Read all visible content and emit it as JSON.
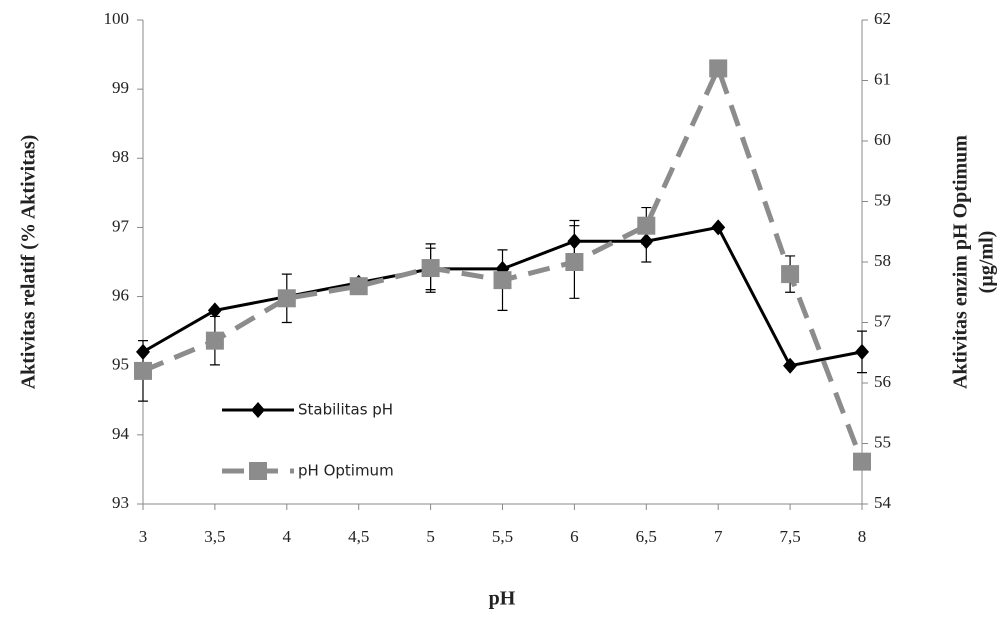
{
  "chart_data": {
    "type": "line",
    "xlabel": "pH",
    "ylabel": "Aktivitas relatif (% Aktivitas)",
    "y2label": [
      "Aktivitas enzim pH Optimum",
      "(µg/ml)"
    ],
    "x": [
      3,
      3.5,
      4,
      4.5,
      5,
      5.5,
      6,
      6.5,
      7,
      7.5,
      8
    ],
    "xlim": [
      3,
      8
    ],
    "xticks": [
      3,
      {
        "value": 3.5,
        "label": "3,5"
      },
      4,
      {
        "value": 4.5,
        "label": "4,5"
      },
      5,
      {
        "value": 5.5,
        "label": "5,5"
      },
      6,
      {
        "value": 6.5,
        "label": "6,5"
      },
      7,
      {
        "value": 7.5,
        "label": "7,5"
      },
      8
    ],
    "ylim": [
      93,
      100
    ],
    "yticks": [
      93,
      94,
      95,
      96,
      97,
      98,
      99,
      100
    ],
    "y2lim": [
      54,
      62
    ],
    "y2ticks": [
      54,
      55,
      56,
      57,
      58,
      59,
      60,
      61,
      62
    ],
    "legend": "lower-left",
    "series": [
      {
        "name": "Stabilitas pH",
        "color": "#000000",
        "axis": "y",
        "marker": "diamond",
        "dash": false,
        "values": [
          95.2,
          95.8,
          96.0,
          96.2,
          96.4,
          96.4,
          96.8,
          96.8,
          97.0,
          95.0,
          95.2
        ],
        "errors": [
          null,
          null,
          null,
          null,
          0.3,
          null,
          0.3,
          0.3,
          null,
          null,
          0.3
        ]
      },
      {
        "name": "pH Optimum",
        "color": "#8c8c8c",
        "axis": "y2",
        "marker": "square",
        "dash": true,
        "values": [
          56.2,
          56.7,
          57.4,
          57.6,
          57.9,
          57.7,
          58.0,
          58.6,
          61.2,
          57.8,
          54.7
        ],
        "errors": [
          0.5,
          0.4,
          0.4,
          0.1,
          0.4,
          0.5,
          0.6,
          0.3,
          null,
          0.3,
          null
        ]
      }
    ]
  }
}
